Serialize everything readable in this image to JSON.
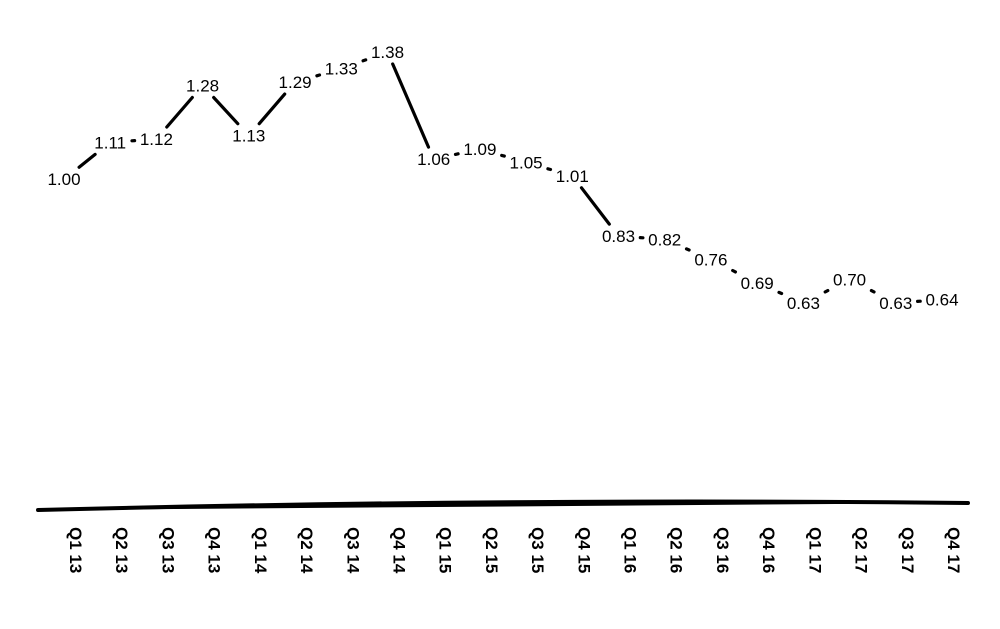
{
  "chart_data": {
    "type": "line",
    "title": "",
    "xlabel": "",
    "ylabel": "",
    "categories": [
      "Q1 13",
      "Q2 13",
      "Q3 13",
      "Q4 13",
      "Q1 14",
      "Q2 14",
      "Q3 14",
      "Q4 14",
      "Q1 15",
      "Q2 15",
      "Q3 15",
      "Q4 15",
      "Q1 16",
      "Q2 16",
      "Q3 16",
      "Q4 16",
      "Q1 17",
      "Q2 17",
      "Q3 17",
      "Q4 17"
    ],
    "series": [
      {
        "values": [
          1.0,
          1.11,
          1.12,
          1.28,
          1.13,
          1.29,
          1.33,
          1.38,
          1.06,
          1.09,
          1.05,
          1.01,
          0.83,
          0.82,
          0.76,
          0.69,
          0.63,
          0.7,
          0.63,
          0.64
        ],
        "labels": [
          "1.00",
          "1.11",
          "1.12",
          "1.28",
          "1.13",
          "1.29",
          "1.33",
          "1.38",
          "1.06",
          "1.09",
          "1.05",
          "1.01",
          "0.83",
          "0.82",
          "0.76",
          "0.69",
          "0.63",
          "0.70",
          "0.63",
          "0.64"
        ]
      }
    ],
    "data_labels": true,
    "grid": false,
    "y_axis_visible": false,
    "x_tick_orientation": "vertical",
    "line_color": "#000000"
  }
}
